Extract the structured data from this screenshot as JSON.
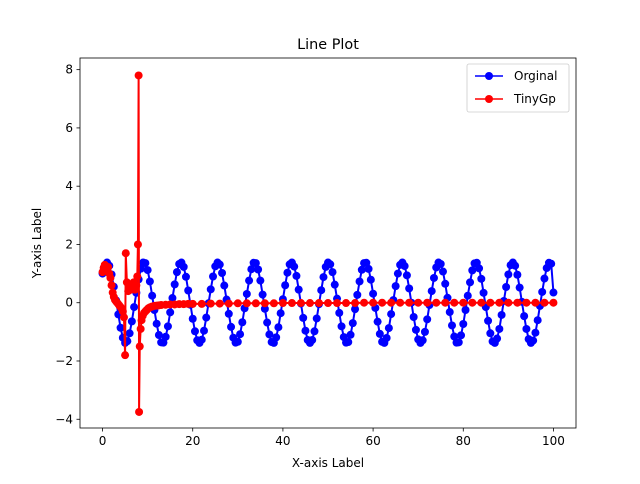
{
  "chart_data": {
    "type": "line",
    "title": "Line Plot",
    "xlabel": "X-axis Label",
    "ylabel": "Y-axis Label",
    "xlim": [
      -5,
      105
    ],
    "ylim": [
      -4.3,
      8.4
    ],
    "xticks": [
      0,
      20,
      40,
      60,
      80,
      100
    ],
    "yticks": [
      -4,
      -2,
      0,
      2,
      4,
      6,
      8
    ],
    "xtick_labels": [
      "0",
      "20",
      "40",
      "60",
      "80",
      "100"
    ],
    "ytick_labels": [
      "−4",
      "−2",
      "0",
      "2",
      "4",
      "6",
      "8"
    ],
    "grid": false,
    "legend_position": "top-right",
    "legend": [
      "Orginal",
      "TinyGp"
    ],
    "series": [
      {
        "name": "Orginal",
        "color": "#0000ff",
        "marker": "circle",
        "points": [
          [
            0.0,
            1.0
          ],
          [
            0.5,
            1.27
          ],
          [
            1.0,
            1.38
          ],
          [
            1.5,
            1.27
          ],
          [
            2.0,
            0.97
          ],
          [
            2.5,
            0.55
          ],
          [
            3.0,
            0.08
          ],
          [
            3.5,
            -0.4
          ],
          [
            4.0,
            -0.86
          ],
          [
            4.5,
            -1.2
          ],
          [
            5.0,
            -1.38
          ],
          [
            5.5,
            -1.32
          ],
          [
            6.0,
            -1.05
          ],
          [
            6.5,
            -0.64
          ],
          [
            7.0,
            -0.15
          ],
          [
            7.5,
            0.34
          ],
          [
            8.0,
            0.8
          ],
          [
            8.5,
            1.17
          ],
          [
            9.0,
            1.38
          ],
          [
            9.5,
            1.36
          ],
          [
            10.0,
            1.12
          ],
          [
            10.5,
            0.73
          ],
          [
            11.0,
            0.24
          ],
          [
            11.5,
            -0.25
          ],
          [
            12.0,
            -0.72
          ],
          [
            12.5,
            -1.11
          ],
          [
            13.0,
            -1.36
          ],
          [
            13.5,
            -1.37
          ],
          [
            14.0,
            -1.17
          ],
          [
            14.5,
            -0.81
          ],
          [
            15.0,
            -0.33
          ],
          [
            15.5,
            0.16
          ],
          [
            16.0,
            0.63
          ],
          [
            16.5,
            1.05
          ],
          [
            17.0,
            1.33
          ],
          [
            17.5,
            1.38
          ],
          [
            18.0,
            1.23
          ],
          [
            18.5,
            0.89
          ],
          [
            19.0,
            0.42
          ],
          [
            19.5,
            -0.07
          ],
          [
            20.0,
            -0.55
          ],
          [
            20.5,
            -0.98
          ],
          [
            21.0,
            -1.29
          ],
          [
            21.5,
            -1.38
          ],
          [
            22.0,
            -1.27
          ],
          [
            22.5,
            -0.96
          ],
          [
            23.0,
            -0.51
          ],
          [
            23.5,
            -0.02
          ],
          [
            24.0,
            0.46
          ],
          [
            24.5,
            0.9
          ],
          [
            25.0,
            1.25
          ],
          [
            25.5,
            1.38
          ],
          [
            26.0,
            1.31
          ],
          [
            26.5,
            1.02
          ],
          [
            27.0,
            0.59
          ],
          [
            27.5,
            0.11
          ],
          [
            28.0,
            -0.38
          ],
          [
            28.5,
            -0.83
          ],
          [
            29.0,
            -1.2
          ],
          [
            29.5,
            -1.37
          ],
          [
            30.0,
            -1.34
          ],
          [
            30.5,
            -1.08
          ],
          [
            31.0,
            -0.67
          ],
          [
            31.5,
            -0.19
          ],
          [
            32.0,
            0.3
          ],
          [
            32.5,
            0.76
          ],
          [
            33.0,
            1.15
          ],
          [
            33.5,
            1.37
          ],
          [
            34.0,
            1.36
          ],
          [
            34.5,
            1.14
          ],
          [
            35.0,
            0.76
          ],
          [
            35.5,
            0.28
          ],
          [
            36.0,
            -0.21
          ],
          [
            36.5,
            -0.68
          ],
          [
            37.0,
            -1.09
          ],
          [
            37.5,
            -1.35
          ],
          [
            38.0,
            -1.38
          ],
          [
            38.5,
            -1.19
          ],
          [
            39.0,
            -0.84
          ],
          [
            39.5,
            -0.36
          ],
          [
            40.0,
            0.12
          ],
          [
            40.5,
            0.6
          ],
          [
            41.0,
            1.03
          ],
          [
            41.5,
            1.32
          ],
          [
            42.0,
            1.38
          ],
          [
            42.5,
            1.24
          ],
          [
            43.0,
            0.92
          ],
          [
            43.5,
            0.45
          ],
          [
            44.0,
            -0.03
          ],
          [
            44.5,
            -0.52
          ],
          [
            45.0,
            -0.96
          ],
          [
            45.5,
            -1.28
          ],
          [
            46.0,
            -1.38
          ],
          [
            46.5,
            -1.28
          ],
          [
            47.0,
            -0.98
          ],
          [
            47.5,
            -0.54
          ],
          [
            48.0,
            -0.05
          ],
          [
            48.5,
            0.43
          ],
          [
            49.0,
            0.88
          ],
          [
            49.5,
            1.23
          ],
          [
            50.0,
            1.38
          ],
          [
            50.5,
            1.32
          ],
          [
            51.0,
            1.05
          ],
          [
            51.5,
            0.62
          ],
          [
            52.0,
            0.14
          ],
          [
            52.5,
            -0.35
          ],
          [
            53.0,
            -0.81
          ],
          [
            53.5,
            -1.18
          ],
          [
            54.0,
            -1.37
          ],
          [
            54.5,
            -1.35
          ],
          [
            55.0,
            -1.1
          ],
          [
            55.5,
            -0.7
          ],
          [
            56.0,
            -0.22
          ],
          [
            56.5,
            0.27
          ],
          [
            57.0,
            0.73
          ],
          [
            57.5,
            1.13
          ],
          [
            58.0,
            1.36
          ],
          [
            58.5,
            1.37
          ],
          [
            59.0,
            1.16
          ],
          [
            59.5,
            0.79
          ],
          [
            60.0,
            0.31
          ],
          [
            60.5,
            -0.18
          ],
          [
            61.0,
            -0.65
          ],
          [
            61.5,
            -1.07
          ],
          [
            62.0,
            -1.34
          ],
          [
            62.5,
            -1.38
          ],
          [
            63.0,
            -1.21
          ],
          [
            63.5,
            -0.87
          ],
          [
            64.0,
            -0.39
          ],
          [
            64.5,
            0.09
          ],
          [
            65.0,
            0.57
          ],
          [
            65.5,
            1.0
          ],
          [
            66.0,
            1.3
          ],
          [
            66.5,
            1.38
          ],
          [
            67.0,
            1.26
          ],
          [
            67.5,
            0.94
          ],
          [
            68.0,
            0.49
          ],
          [
            68.5,
            0.0
          ],
          [
            69.0,
            -0.49
          ],
          [
            69.5,
            -0.93
          ],
          [
            70.0,
            -1.26
          ],
          [
            70.5,
            -1.38
          ],
          [
            71.0,
            -1.29
          ],
          [
            71.5,
            -1.0
          ],
          [
            72.0,
            -0.57
          ],
          [
            72.5,
            -0.08
          ],
          [
            73.0,
            0.4
          ],
          [
            73.5,
            0.85
          ],
          [
            74.0,
            1.21
          ],
          [
            74.5,
            1.38
          ],
          [
            75.0,
            1.33
          ],
          [
            75.5,
            1.07
          ],
          [
            76.0,
            0.65
          ],
          [
            76.5,
            0.17
          ],
          [
            77.0,
            -0.32
          ],
          [
            77.5,
            -0.78
          ],
          [
            78.0,
            -1.16
          ],
          [
            78.5,
            -1.37
          ],
          [
            79.0,
            -1.36
          ],
          [
            79.5,
            -1.12
          ],
          [
            80.0,
            -0.73
          ],
          [
            80.5,
            -0.25
          ],
          [
            81.0,
            0.24
          ],
          [
            81.5,
            0.7
          ],
          [
            82.0,
            1.11
          ],
          [
            82.5,
            1.35
          ],
          [
            83.0,
            1.37
          ],
          [
            83.5,
            1.18
          ],
          [
            84.0,
            0.82
          ],
          [
            84.5,
            0.34
          ],
          [
            85.0,
            -0.15
          ],
          [
            85.5,
            -0.62
          ],
          [
            86.0,
            -1.05
          ],
          [
            86.5,
            -1.33
          ],
          [
            87.0,
            -1.38
          ],
          [
            87.5,
            -1.23
          ],
          [
            88.0,
            -0.9
          ],
          [
            88.5,
            -0.42
          ],
          [
            89.0,
            0.06
          ],
          [
            89.5,
            0.54
          ],
          [
            90.0,
            0.97
          ],
          [
            90.5,
            1.29
          ],
          [
            91.0,
            1.38
          ],
          [
            91.5,
            1.27
          ],
          [
            92.0,
            0.96
          ],
          [
            92.5,
            0.52
          ],
          [
            93.0,
            0.03
          ],
          [
            93.5,
            -0.46
          ],
          [
            94.0,
            -0.9
          ],
          [
            94.5,
            -1.25
          ],
          [
            95.0,
            -1.38
          ],
          [
            95.5,
            -1.3
          ],
          [
            96.0,
            -1.03
          ],
          [
            96.5,
            -0.6
          ],
          [
            97.0,
            -0.11
          ],
          [
            97.5,
            0.37
          ],
          [
            98.0,
            0.83
          ],
          [
            98.5,
            1.19
          ],
          [
            99.0,
            1.37
          ],
          [
            99.5,
            1.34
          ],
          [
            100.0,
            0.35
          ]
        ]
      },
      {
        "name": "TinyGp",
        "color": "#ff0000",
        "marker": "circle",
        "points": [
          [
            0.0,
            1.05
          ],
          [
            0.25,
            1.2
          ],
          [
            0.5,
            1.3
          ],
          [
            0.75,
            1.25
          ],
          [
            1.0,
            1.1
          ],
          [
            1.25,
            1.22
          ],
          [
            1.5,
            1.0
          ],
          [
            1.75,
            0.85
          ],
          [
            2.0,
            0.6
          ],
          [
            2.25,
            0.35
          ],
          [
            2.5,
            0.2
          ],
          [
            2.75,
            0.1
          ],
          [
            3.0,
            0.05
          ],
          [
            3.25,
            0.0
          ],
          [
            3.5,
            -0.05
          ],
          [
            3.75,
            -0.1
          ],
          [
            4.0,
            -0.15
          ],
          [
            4.25,
            -0.2
          ],
          [
            4.5,
            -0.3
          ],
          [
            4.75,
            -0.5
          ],
          [
            5.0,
            -1.8
          ],
          [
            5.15,
            1.7
          ],
          [
            5.4,
            0.7
          ],
          [
            5.7,
            0.4
          ],
          [
            6.0,
            0.55
          ],
          [
            6.3,
            0.45
          ],
          [
            6.6,
            0.5
          ],
          [
            6.9,
            0.7
          ],
          [
            7.2,
            0.45
          ],
          [
            7.5,
            0.6
          ],
          [
            7.7,
            0.9
          ],
          [
            7.85,
            2.0
          ],
          [
            8.0,
            7.8
          ],
          [
            8.1,
            -3.75
          ],
          [
            8.25,
            -1.5
          ],
          [
            8.45,
            -0.9
          ],
          [
            8.65,
            -0.6
          ],
          [
            8.9,
            -0.45
          ],
          [
            9.2,
            -0.35
          ],
          [
            9.5,
            -0.3
          ],
          [
            9.8,
            -0.25
          ],
          [
            10.1,
            -0.2
          ],
          [
            10.4,
            -0.17
          ],
          [
            10.7,
            -0.15
          ],
          [
            11.0,
            -0.13
          ],
          [
            11.5,
            -0.11
          ],
          [
            12.0,
            -0.1
          ],
          [
            12.5,
            -0.09
          ],
          [
            13.0,
            -0.08
          ],
          [
            14.0,
            -0.07
          ],
          [
            15.0,
            -0.06
          ],
          [
            16.0,
            -0.06
          ],
          [
            17.0,
            -0.05
          ],
          [
            18.0,
            -0.05
          ],
          [
            19.0,
            -0.04
          ],
          [
            20.0,
            -0.04
          ],
          [
            22.0,
            -0.04
          ],
          [
            24.0,
            -0.03
          ],
          [
            26.0,
            -0.03
          ],
          [
            28.0,
            -0.03
          ],
          [
            30.0,
            -0.02
          ],
          [
            32.0,
            -0.02
          ],
          [
            34.0,
            -0.02
          ],
          [
            36.0,
            -0.02
          ],
          [
            38.0,
            -0.02
          ],
          [
            40.0,
            -0.01
          ],
          [
            42.0,
            -0.01
          ],
          [
            44.0,
            -0.01
          ],
          [
            46.0,
            -0.01
          ],
          [
            48.0,
            -0.01
          ],
          [
            50.0,
            -0.01
          ],
          [
            52.0,
            -0.01
          ],
          [
            54.0,
            -0.01
          ],
          [
            56.0,
            -0.01
          ],
          [
            58.0,
            0.0
          ],
          [
            60.0,
            0.0
          ],
          [
            62.0,
            0.0
          ],
          [
            64.0,
            0.0
          ],
          [
            66.0,
            0.0
          ],
          [
            68.0,
            0.0
          ],
          [
            70.0,
            0.0
          ],
          [
            72.0,
            0.0
          ],
          [
            74.0,
            0.0
          ],
          [
            76.0,
            0.0
          ],
          [
            78.0,
            0.0
          ],
          [
            80.0,
            0.0
          ],
          [
            82.0,
            0.0
          ],
          [
            84.0,
            0.0
          ],
          [
            86.0,
            0.0
          ],
          [
            88.0,
            0.0
          ],
          [
            90.0,
            0.0
          ],
          [
            92.0,
            0.0
          ],
          [
            94.0,
            0.0
          ],
          [
            96.0,
            0.0
          ],
          [
            98.0,
            0.0
          ],
          [
            100.0,
            0.0
          ]
        ]
      }
    ]
  }
}
